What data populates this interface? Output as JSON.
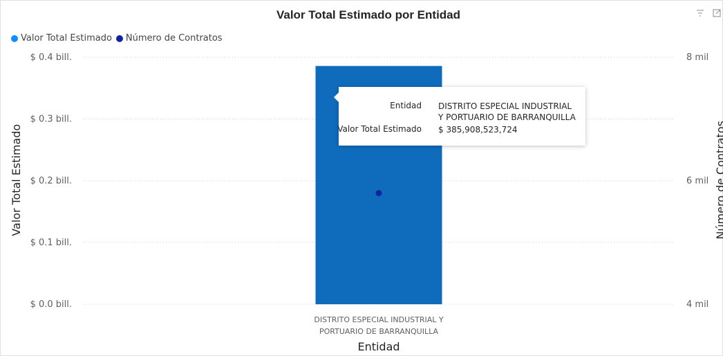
{
  "header": {
    "title": "Valor Total Estimado por Entidad",
    "filter_icon": "filter-icon",
    "focus_icon": "focus-mode-icon"
  },
  "legend": {
    "items": [
      {
        "label": "Valor Total Estimado",
        "color": "#118dff"
      },
      {
        "label": "Número de Contratos",
        "color": "#12239e"
      }
    ]
  },
  "tooltip": {
    "entity_key": "Entidad",
    "entity_value": "DISTRITO ESPECIAL INDUSTRIAL Y PORTUARIO DE BARRANQUILLA",
    "value_key": "Valor Total Estimado",
    "value_value": "$ 385,908,523,724"
  },
  "chart_data": {
    "type": "bar",
    "categories": [
      "DISTRITO ESPECIAL INDUSTRIAL Y PORTUARIO DE BARRANQUILLA"
    ],
    "category_label_lines": [
      "DISTRITO ESPECIAL INDUSTRIAL Y",
      "PORTUARIO DE BARRANQUILLA"
    ],
    "series": [
      {
        "name": "Valor Total Estimado",
        "kind": "bar",
        "axis": "left",
        "color": "#0f6cbd",
        "values": [
          385908523724
        ]
      },
      {
        "name": "Número de Contratos",
        "kind": "point",
        "axis": "right",
        "color": "#12239e",
        "values": [
          5800
        ]
      }
    ],
    "xlabel": "Entidad",
    "ylabel_left": "Valor Total Estimado",
    "ylabel_right": "Número de Contratos",
    "ylim_left": [
      0,
      400000000000
    ],
    "ylim_right": [
      4000,
      8000
    ],
    "left_ticks": [
      {
        "value": 0,
        "label": "$ 0.0 bill."
      },
      {
        "value": 100000000000,
        "label": "$ 0.1 bill."
      },
      {
        "value": 200000000000,
        "label": "$ 0.2 bill."
      },
      {
        "value": 300000000000,
        "label": "$ 0.3 bill."
      },
      {
        "value": 400000000000,
        "label": "$ 0.4 bill."
      }
    ],
    "right_ticks": [
      {
        "value": 4000,
        "label": "4 mil"
      },
      {
        "value": 6000,
        "label": "6 mil"
      },
      {
        "value": 8000,
        "label": "8 mil"
      }
    ],
    "grid": true,
    "legend_position": "top-left"
  }
}
